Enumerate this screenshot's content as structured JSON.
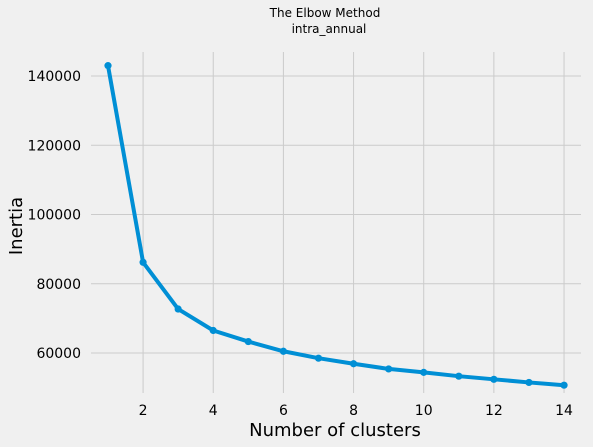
{
  "chart_data": {
    "type": "line",
    "title": "The Elbow Method",
    "subtitle": "intra_annual",
    "xlabel": "Number of clusters",
    "ylabel": "Inertia",
    "x": [
      1,
      2,
      3,
      4,
      5,
      6,
      7,
      8,
      9,
      10,
      11,
      12,
      13,
      14
    ],
    "series": [
      {
        "values": [
          143000,
          86200,
          72700,
          66500,
          63300,
          60500,
          58500,
          56900,
          55400,
          54400,
          53300,
          52400,
          51500,
          50700
        ],
        "color": "#008fd5"
      }
    ],
    "xlim": [
      0.5,
      14.5
    ],
    "ylim": [
      48000,
      147000
    ],
    "xticks": [
      2,
      4,
      6,
      8,
      10,
      12,
      14
    ],
    "yticks": [
      60000,
      80000,
      100000,
      120000,
      140000
    ],
    "grid": true,
    "marker": "circle",
    "background": "#f0f0f0",
    "grid_color": "#cbcbcb"
  }
}
